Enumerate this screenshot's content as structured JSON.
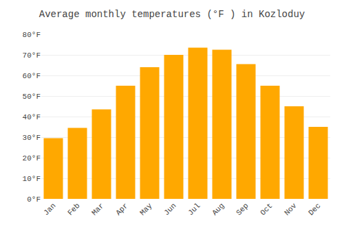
{
  "chart_data": {
    "type": "bar",
    "title": "Average monthly temperatures (°F ) in Kozloduy",
    "categories": [
      "Jan",
      "Feb",
      "Mar",
      "Apr",
      "May",
      "Jun",
      "Jul",
      "Aug",
      "Sep",
      "Oct",
      "Nov",
      "Dec"
    ],
    "values": [
      29.5,
      34.5,
      43.5,
      55.0,
      64.0,
      70.0,
      73.5,
      72.5,
      65.5,
      55.0,
      45.0,
      35.0
    ],
    "color": "#FFA800",
    "ylim": [
      0,
      80
    ],
    "yticks": [
      {
        "value": 0,
        "label": "0°F"
      },
      {
        "value": 10,
        "label": "10°F"
      },
      {
        "value": 20,
        "label": "20°F"
      },
      {
        "value": 30,
        "label": "30°F"
      },
      {
        "value": 40,
        "label": "40°F"
      },
      {
        "value": 50,
        "label": "50°F"
      },
      {
        "value": 60,
        "label": "60°F"
      },
      {
        "value": 70,
        "label": "70°F"
      },
      {
        "value": 80,
        "label": "80°F"
      }
    ],
    "grid": true
  }
}
